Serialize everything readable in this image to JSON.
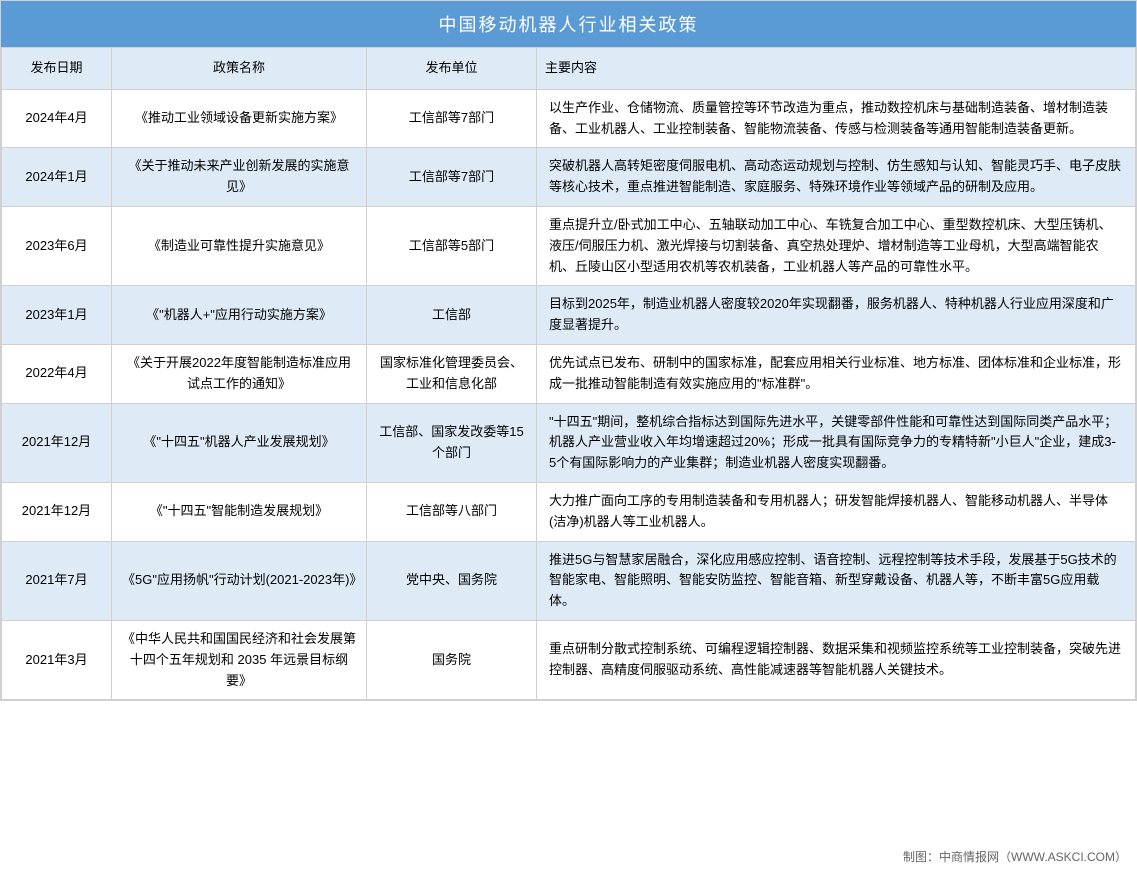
{
  "title": "中国移动机器人行业相关政策",
  "columns": {
    "date": "发布日期",
    "policy": "政策名称",
    "dept": "发布单位",
    "content": "主要内容"
  },
  "rows": [
    {
      "date": "2024年4月",
      "policy": "《推动工业领域设备更新实施方案》",
      "dept": "工信部等7部门",
      "content": "以生产作业、仓储物流、质量管控等环节改造为重点，推动数控机床与基础制造装备、增材制造装备、工业机器人、工业控制装备、智能物流装备、传感与检测装备等通用智能制造装备更新。"
    },
    {
      "date": "2024年1月",
      "policy": "《关于推动未来产业创新发展的实施意见》",
      "dept": "工信部等7部门",
      "content": "突破机器人高转矩密度伺服电机、高动态运动规划与控制、仿生感知与认知、智能灵巧手、电子皮肤等核心技术，重点推进智能制造、家庭服务、特殊环境作业等领域产品的研制及应用。"
    },
    {
      "date": "2023年6月",
      "policy": "《制造业可靠性提升实施意见》",
      "dept": "工信部等5部门",
      "content": "重点提升立/卧式加工中心、五轴联动加工中心、车铣复合加工中心、重型数控机床、大型压铸机、液压/伺服压力机、激光焊接与切割装备、真空热处理炉、增材制造等工业母机，大型高端智能农机、丘陵山区小型适用农机等农机装备，工业机器人等产品的可靠性水平。"
    },
    {
      "date": "2023年1月",
      "policy": "《\"机器人+\"应用行动实施方案》",
      "dept": "工信部",
      "content": "目标到2025年，制造业机器人密度较2020年实现翻番，服务机器人、特种机器人行业应用深度和广度显著提升。"
    },
    {
      "date": "2022年4月",
      "policy": "《关于开展2022年度智能制造标准应用试点工作的通知》",
      "dept": "国家标准化管理委员会、工业和信息化部",
      "content": "优先试点已发布、研制中的国家标准，配套应用相关行业标准、地方标准、团体标准和企业标准，形成一批推动智能制造有效实施应用的\"标准群\"。"
    },
    {
      "date": "2021年12月",
      "policy": "《\"十四五\"机器人产业发展规划》",
      "dept": "工信部、国家发改委等15个部门",
      "content": "\"十四五\"期间，整机综合指标达到国际先进水平，关键零部件性能和可靠性达到国际同类产品水平；机器人产业营业收入年均增速超过20%；形成一批具有国际竞争力的专精特新\"小巨人\"企业，建成3-5个有国际影响力的产业集群；制造业机器人密度实现翻番。"
    },
    {
      "date": "2021年12月",
      "policy": "《\"十四五\"智能制造发展规划》",
      "dept": "工信部等八部门",
      "content": "大力推广面向工序的专用制造装备和专用机器人；研发智能焊接机器人、智能移动机器人、半导体(洁净)机器人等工业机器人。"
    },
    {
      "date": "2021年7月",
      "policy": "《5G\"应用扬帆\"行动计划(2021-2023年)》",
      "dept": "党中央、国务院",
      "content": "推进5G与智慧家居融合，深化应用感应控制、语音控制、远程控制等技术手段，发展基于5G技术的智能家电、智能照明、智能安防监控、智能音箱、新型穿戴设备、机器人等，不断丰富5G应用载体。"
    },
    {
      "date": "2021年3月",
      "policy": "《中华人民共和国国民经济和社会发展第十四个五年规划和 2035 年远景目标纲要》",
      "dept": "国务院",
      "content": "重点研制分散式控制系统、可编程逻辑控制器、数据采集和视频监控系统等工业控制装备，突破先进控制器、高精度伺服驱动系统、高性能减速器等智能机器人关键技术。"
    }
  ],
  "footer": "制图：中商情报网（WWW.ASKCI.COM）",
  "styling": {
    "title_bg": "#5b9bd5",
    "title_color": "#ffffff",
    "header_bg": "#deebf7",
    "row_even_bg": "#deebf7",
    "row_odd_bg": "#ffffff",
    "border_color": "#d0d0d0",
    "font_size_title": 18,
    "font_size_body": 13,
    "col_widths": {
      "date": 110,
      "policy": 255,
      "dept": 170
    }
  }
}
